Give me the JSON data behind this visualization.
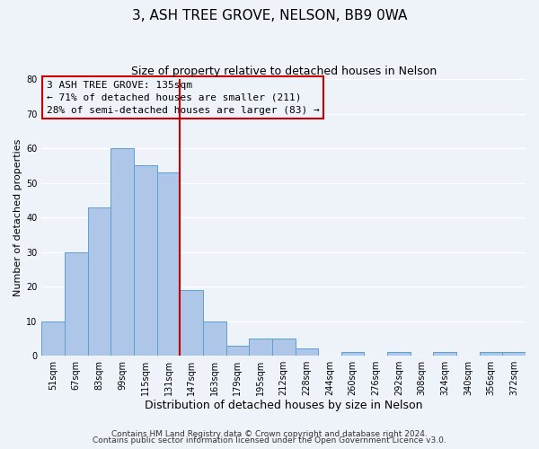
{
  "title": "3, ASH TREE GROVE, NELSON, BB9 0WA",
  "subtitle": "Size of property relative to detached houses in Nelson",
  "xlabel": "Distribution of detached houses by size in Nelson",
  "ylabel": "Number of detached properties",
  "bar_labels": [
    "51sqm",
    "67sqm",
    "83sqm",
    "99sqm",
    "115sqm",
    "131sqm",
    "147sqm",
    "163sqm",
    "179sqm",
    "195sqm",
    "212sqm",
    "228sqm",
    "244sqm",
    "260sqm",
    "276sqm",
    "292sqm",
    "308sqm",
    "324sqm",
    "340sqm",
    "356sqm",
    "372sqm"
  ],
  "bar_heights": [
    10,
    30,
    43,
    60,
    55,
    53,
    19,
    10,
    3,
    5,
    5,
    2,
    0,
    1,
    0,
    1,
    0,
    1,
    0,
    1,
    1
  ],
  "bar_color": "#aec6e8",
  "bar_edge_color": "#5a9fd4",
  "vline_x": 5.5,
  "vline_color": "#cc0000",
  "annotation_line1": "3 ASH TREE GROVE: 135sqm",
  "annotation_line2": "← 71% of detached houses are smaller (211)",
  "annotation_line3": "28% of semi-detached houses are larger (83) →",
  "ylim": [
    0,
    80
  ],
  "yticks": [
    0,
    10,
    20,
    30,
    40,
    50,
    60,
    70,
    80
  ],
  "footer_line1": "Contains HM Land Registry data © Crown copyright and database right 2024.",
  "footer_line2": "Contains public sector information licensed under the Open Government Licence v3.0.",
  "background_color": "#eef2f9",
  "grid_color": "#ffffff",
  "title_fontsize": 11,
  "subtitle_fontsize": 9,
  "xlabel_fontsize": 9,
  "ylabel_fontsize": 8,
  "annotation_fontsize": 8,
  "tick_fontsize": 7,
  "footer_fontsize": 6.5
}
